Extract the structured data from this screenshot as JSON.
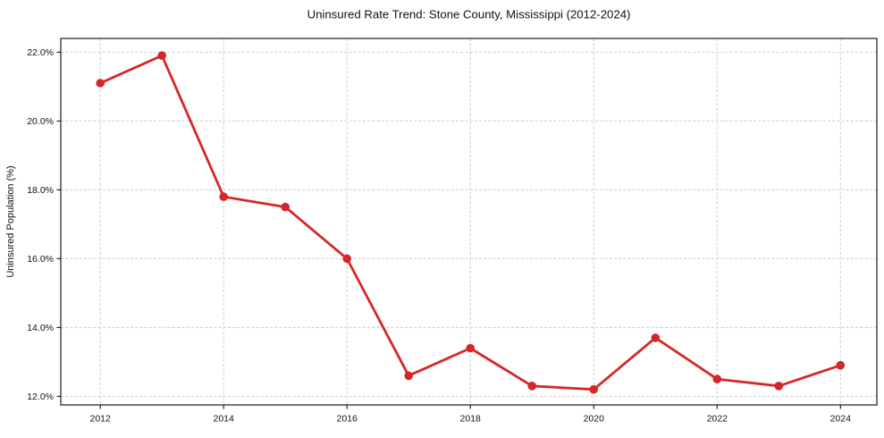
{
  "chart_data": {
    "type": "line",
    "title": "Uninsured Rate Trend: Stone County, Mississippi (2012-2024)",
    "xlabel": "",
    "ylabel": "Uninsured Population (%)",
    "x": [
      2012,
      2013,
      2014,
      2015,
      2016,
      2017,
      2018,
      2019,
      2020,
      2021,
      2022,
      2023,
      2024
    ],
    "values": [
      21.1,
      21.9,
      17.8,
      17.5,
      16.0,
      12.6,
      13.4,
      12.3,
      12.2,
      13.7,
      12.5,
      12.3,
      12.9
    ],
    "xlim": [
      2011.36,
      2024.59
    ],
    "ylim": [
      11.75,
      22.4
    ],
    "x_ticks": [
      2012,
      2014,
      2016,
      2018,
      2020,
      2022,
      2024
    ],
    "x_tick_labels": [
      "2012",
      "2014",
      "2016",
      "2018",
      "2020",
      "2022",
      "2024"
    ],
    "y_ticks": [
      12,
      14,
      16,
      18,
      20,
      22
    ],
    "y_tick_labels": [
      "12.0%",
      "14.0%",
      "16.0%",
      "18.0%",
      "20.0%",
      "22.0%"
    ],
    "grid": true,
    "grid_style": "dashed",
    "legend": false,
    "marker": "circle",
    "colors": {
      "line": "#d62728",
      "marker": "#d62728",
      "grid": "#cccccc",
      "frame": "#1a1a1a",
      "tick": "#111111",
      "text": "#111111",
      "background": "#ffffff"
    }
  }
}
